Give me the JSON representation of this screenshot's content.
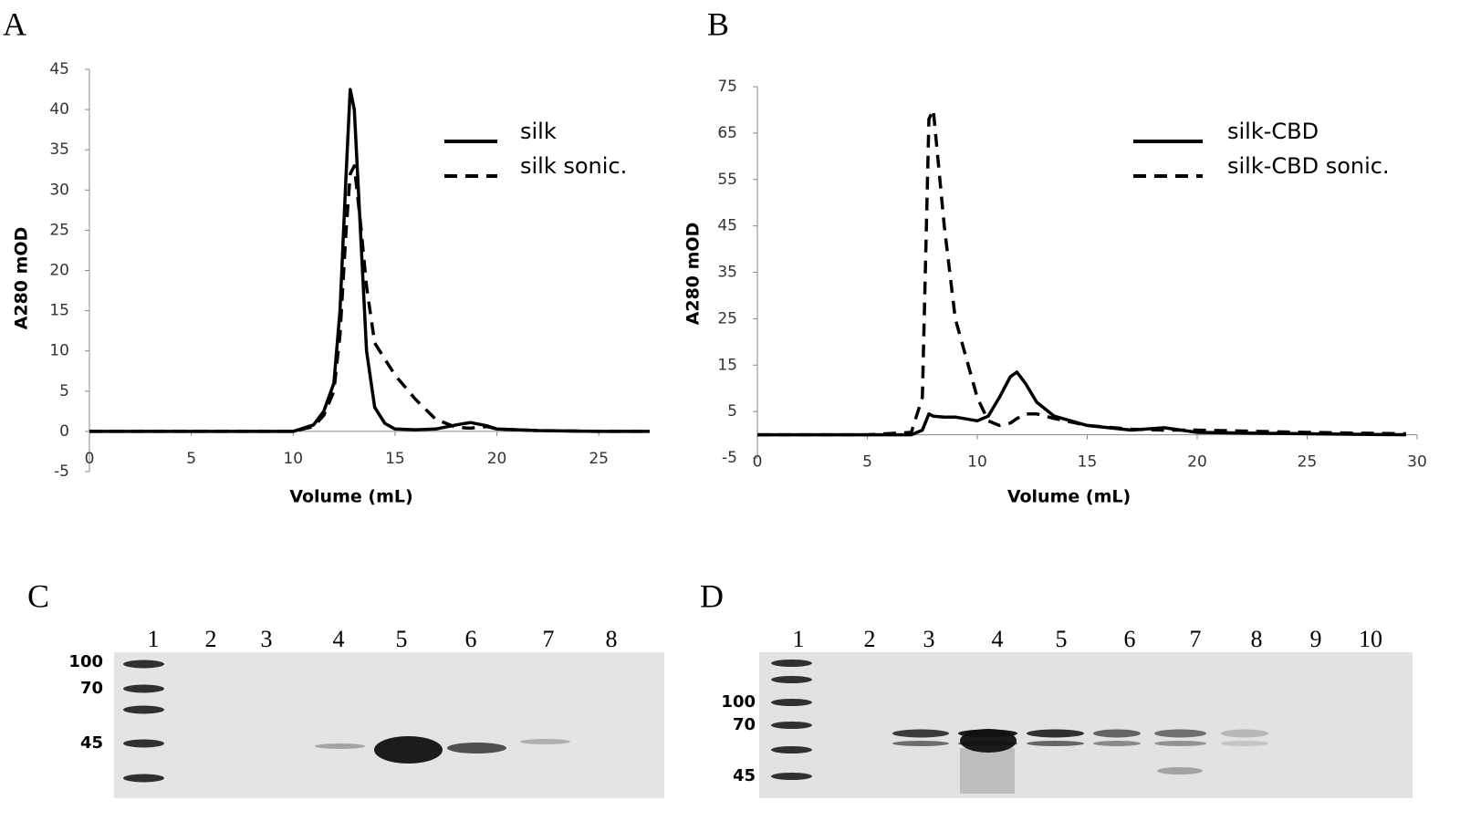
{
  "panel_labels": [
    "A",
    "B",
    "C",
    "D"
  ],
  "chart_data": [
    {
      "type": "line",
      "x_label": "Volume (mL)",
      "y_label": "A280 mOD",
      "xlim": [
        0,
        27.5
      ],
      "ylim": [
        -5,
        45
      ],
      "xticks": [
        0,
        5,
        10,
        15,
        20,
        25
      ],
      "yticks": [
        -5,
        0,
        5,
        10,
        15,
        20,
        25,
        30,
        35,
        40,
        45
      ],
      "legend": "top-right",
      "x": [
        0,
        5,
        10,
        11,
        11.5,
        12,
        12.3,
        12.6,
        12.8,
        13,
        13.3,
        13.6,
        14,
        14.5,
        15,
        16,
        17,
        18,
        18.7,
        19.5,
        20,
        22,
        25,
        27.5
      ],
      "series": [
        {
          "name": "silk",
          "color": "#000000",
          "dash": false,
          "values": [
            0,
            0,
            0,
            0.8,
            2.5,
            6,
            15,
            32,
            42.5,
            40,
            25,
            10,
            3,
            1,
            0.3,
            0.2,
            0.3,
            0.8,
            1.1,
            0.7,
            0.3,
            0.1,
            0,
            0
          ]
        },
        {
          "name": "silk sonic.",
          "color": "#000000",
          "dash": true,
          "values": [
            0,
            0,
            0,
            0.6,
            2,
            5,
            12,
            25,
            32,
            33,
            26,
            18,
            11,
            9,
            7,
            4,
            1.5,
            0.5,
            0.4,
            0.6,
            0.3,
            0.1,
            0,
            0
          ]
        }
      ]
    },
    {
      "type": "line",
      "x_label": "Volume (mL)",
      "y_label": "A280 mOD",
      "xlim": [
        0,
        30
      ],
      "ylim": [
        -5,
        75
      ],
      "xticks": [
        0,
        5,
        10,
        15,
        20,
        25,
        30
      ],
      "yticks": [
        -5,
        5,
        15,
        25,
        35,
        45,
        55,
        65,
        75
      ],
      "legend": "top-right",
      "x": [
        0,
        5,
        7,
        7.5,
        7.8,
        8,
        8.5,
        9,
        10,
        10.5,
        11,
        11.5,
        11.8,
        12.2,
        12.7,
        13.5,
        15,
        17,
        18.5,
        20,
        25,
        29.5
      ],
      "series": [
        {
          "name": "silk-CBD",
          "color": "#000000",
          "dash": false,
          "values": [
            0,
            0,
            0,
            1,
            4.5,
            4,
            3.8,
            3.8,
            3,
            4,
            8,
            12.5,
            13.5,
            11,
            7,
            4,
            2,
            1,
            1.5,
            0.5,
            0.2,
            0
          ]
        },
        {
          "name": "silk-CBD sonic.",
          "color": "#000000",
          "dash": true,
          "values": [
            0,
            0,
            0.5,
            8,
            68,
            70,
            45,
            25,
            8,
            3,
            2,
            2.5,
            3.5,
            4.5,
            4.5,
            3.5,
            2,
            1.2,
            1,
            1,
            0.5,
            0.2
          ]
        }
      ]
    }
  ],
  "gels": [
    {
      "lanes": [
        "1",
        "2",
        "3",
        "4",
        "5",
        "6",
        "7",
        "8"
      ],
      "markers": [
        100,
        70,
        45
      ]
    },
    {
      "lanes": [
        "1",
        "2",
        "3",
        "4",
        "5",
        "6",
        "7",
        "8",
        "9",
        "10"
      ],
      "markers": [
        100,
        70,
        45
      ]
    }
  ]
}
